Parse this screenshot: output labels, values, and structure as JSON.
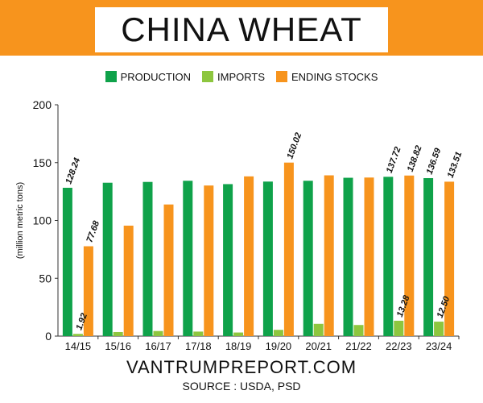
{
  "header": {
    "title": "CHINA WHEAT"
  },
  "legend": [
    {
      "label": "PRODUCTION",
      "color": "#0fa24a"
    },
    {
      "label": "IMPORTS",
      "color": "#8dc63f"
    },
    {
      "label": "ENDING STOCKS",
      "color": "#f7941d"
    }
  ],
  "footer": {
    "site": "VANTRUMPREPORT.COM",
    "source": "SOURCE : USDA, PSD"
  },
  "chart_data": {
    "type": "bar",
    "title": "CHINA WHEAT",
    "xlabel": "",
    "ylabel": "(million metric tons)",
    "ylim": [
      0,
      200
    ],
    "yticks": [
      0,
      50,
      100,
      150,
      200
    ],
    "grid": false,
    "legend_position": "top",
    "categories": [
      "14/15",
      "15/16",
      "16/17",
      "17/18",
      "18/19",
      "19/20",
      "20/21",
      "21/22",
      "22/23",
      "23/24"
    ],
    "series": [
      {
        "name": "PRODUCTION",
        "color": "#0fa24a",
        "values": [
          128.24,
          132.6,
          133.3,
          134.3,
          131.4,
          133.6,
          134.3,
          136.9,
          137.72,
          136.59
        ]
      },
      {
        "name": "IMPORTS",
        "color": "#8dc63f",
        "values": [
          1.92,
          3.5,
          4.4,
          3.9,
          3.1,
          5.4,
          10.6,
          9.6,
          13.28,
          12.5
        ]
      },
      {
        "name": "ENDING STOCKS",
        "color": "#f7941d",
        "values": [
          77.68,
          95.5,
          113.8,
          130.2,
          138.1,
          150.02,
          139.0,
          137.1,
          138.82,
          133.51
        ]
      }
    ],
    "data_labels": [
      {
        "series": 0,
        "index": 0,
        "text": "128.24"
      },
      {
        "series": 1,
        "index": 0,
        "text": "1.92"
      },
      {
        "series": 2,
        "index": 0,
        "text": "77.68"
      },
      {
        "series": 2,
        "index": 5,
        "text": "150.02"
      },
      {
        "series": 0,
        "index": 8,
        "text": "137.72"
      },
      {
        "series": 1,
        "index": 8,
        "text": "13.28"
      },
      {
        "series": 2,
        "index": 8,
        "text": "138.82"
      },
      {
        "series": 0,
        "index": 9,
        "text": "136.59"
      },
      {
        "series": 1,
        "index": 9,
        "text": "12.50"
      },
      {
        "series": 2,
        "index": 9,
        "text": "133.51"
      }
    ]
  }
}
